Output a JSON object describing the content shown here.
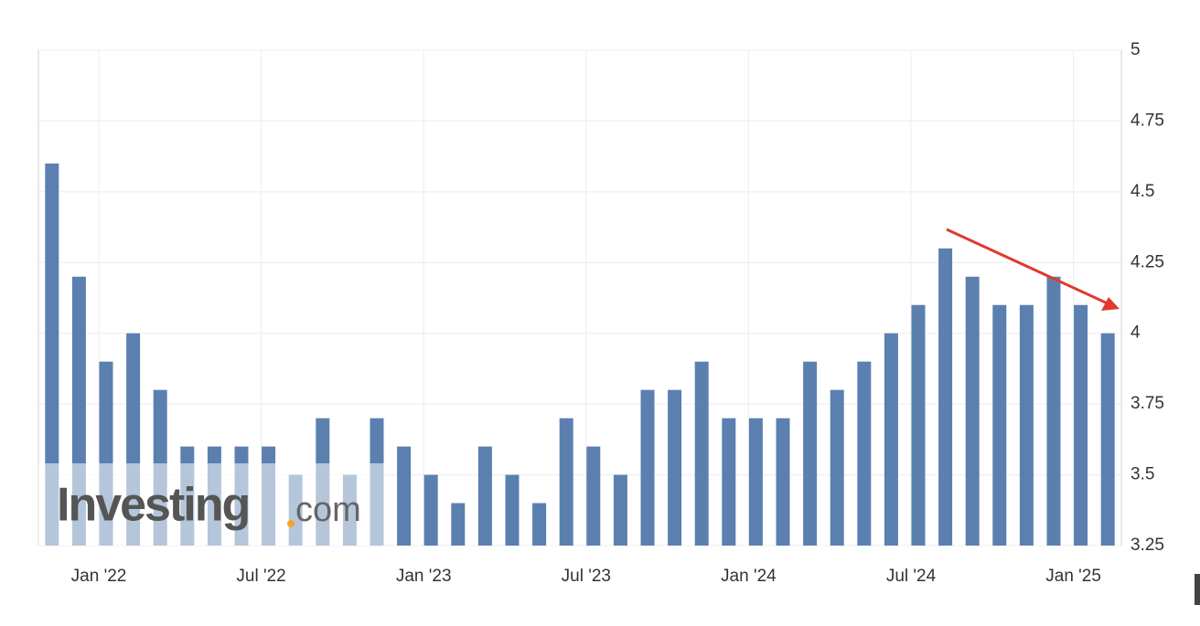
{
  "chart_data": {
    "type": "bar",
    "categories": [
      null,
      null,
      "Jan '22",
      null,
      null,
      null,
      null,
      null,
      "Jul '22",
      null,
      null,
      null,
      null,
      null,
      "Jan '23",
      null,
      null,
      null,
      null,
      null,
      "Jul '23",
      null,
      null,
      null,
      null,
      null,
      "Jan '24",
      null,
      null,
      null,
      null,
      null,
      "Jul '24",
      null,
      null,
      null,
      null,
      null,
      "Jan '25",
      null
    ],
    "values": [
      4.6,
      4.2,
      3.9,
      4.0,
      3.8,
      3.6,
      3.6,
      3.6,
      3.6,
      3.5,
      3.7,
      3.5,
      3.7,
      3.6,
      3.5,
      3.4,
      3.6,
      3.5,
      3.4,
      3.7,
      3.6,
      3.5,
      3.8,
      3.8,
      3.9,
      3.7,
      3.7,
      3.7,
      3.9,
      3.8,
      3.9,
      4.0,
      4.1,
      4.3,
      4.2,
      4.1,
      4.1,
      4.2,
      4.1,
      4.0
    ],
    "color": "#5b80b0",
    "ylim": [
      3.25,
      5
    ],
    "yticks": [
      3.25,
      3.5,
      3.75,
      4,
      4.25,
      4.5,
      4.75,
      5
    ],
    "grid": true,
    "watermark": {
      "brand": "Investing",
      "suffix": "com"
    }
  }
}
